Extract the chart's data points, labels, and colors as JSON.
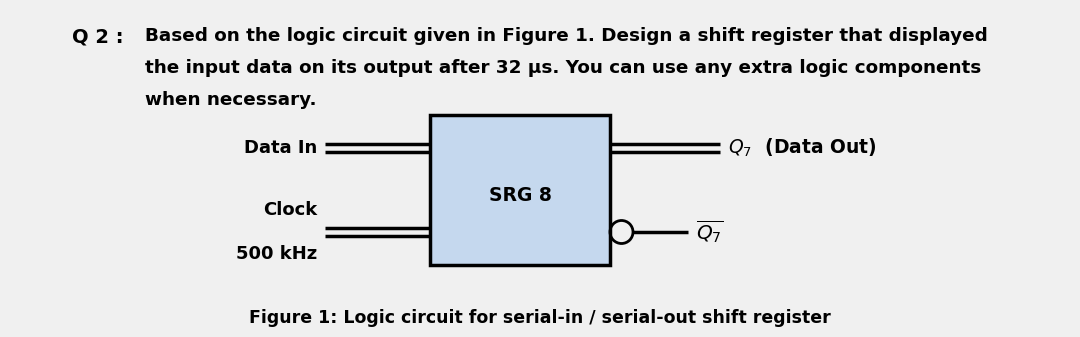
{
  "bg_color": "#f0f0f0",
  "question_label": "Q 2 :",
  "question_text_line1": "Based on the logic circuit given in Figure 1. Design a shift register that displayed",
  "question_text_line2": "the input data on its output after 32 μs. You can use any extra logic components",
  "question_text_line3": "when necessary.",
  "box_fill": "#c5d8ee",
  "box_edge": "#000000",
  "box_label": "SRG 8",
  "data_in_label": "Data In",
  "clock_label": "Clock",
  "freq_label": "500 kHz",
  "figure_caption": "Figure 1: Logic circuit for serial-in / serial-out shift register",
  "font_size_q_label": 14,
  "font_size_text": 13.2,
  "font_size_box": 13.5,
  "font_size_signal": 13,
  "font_size_caption": 12.5
}
